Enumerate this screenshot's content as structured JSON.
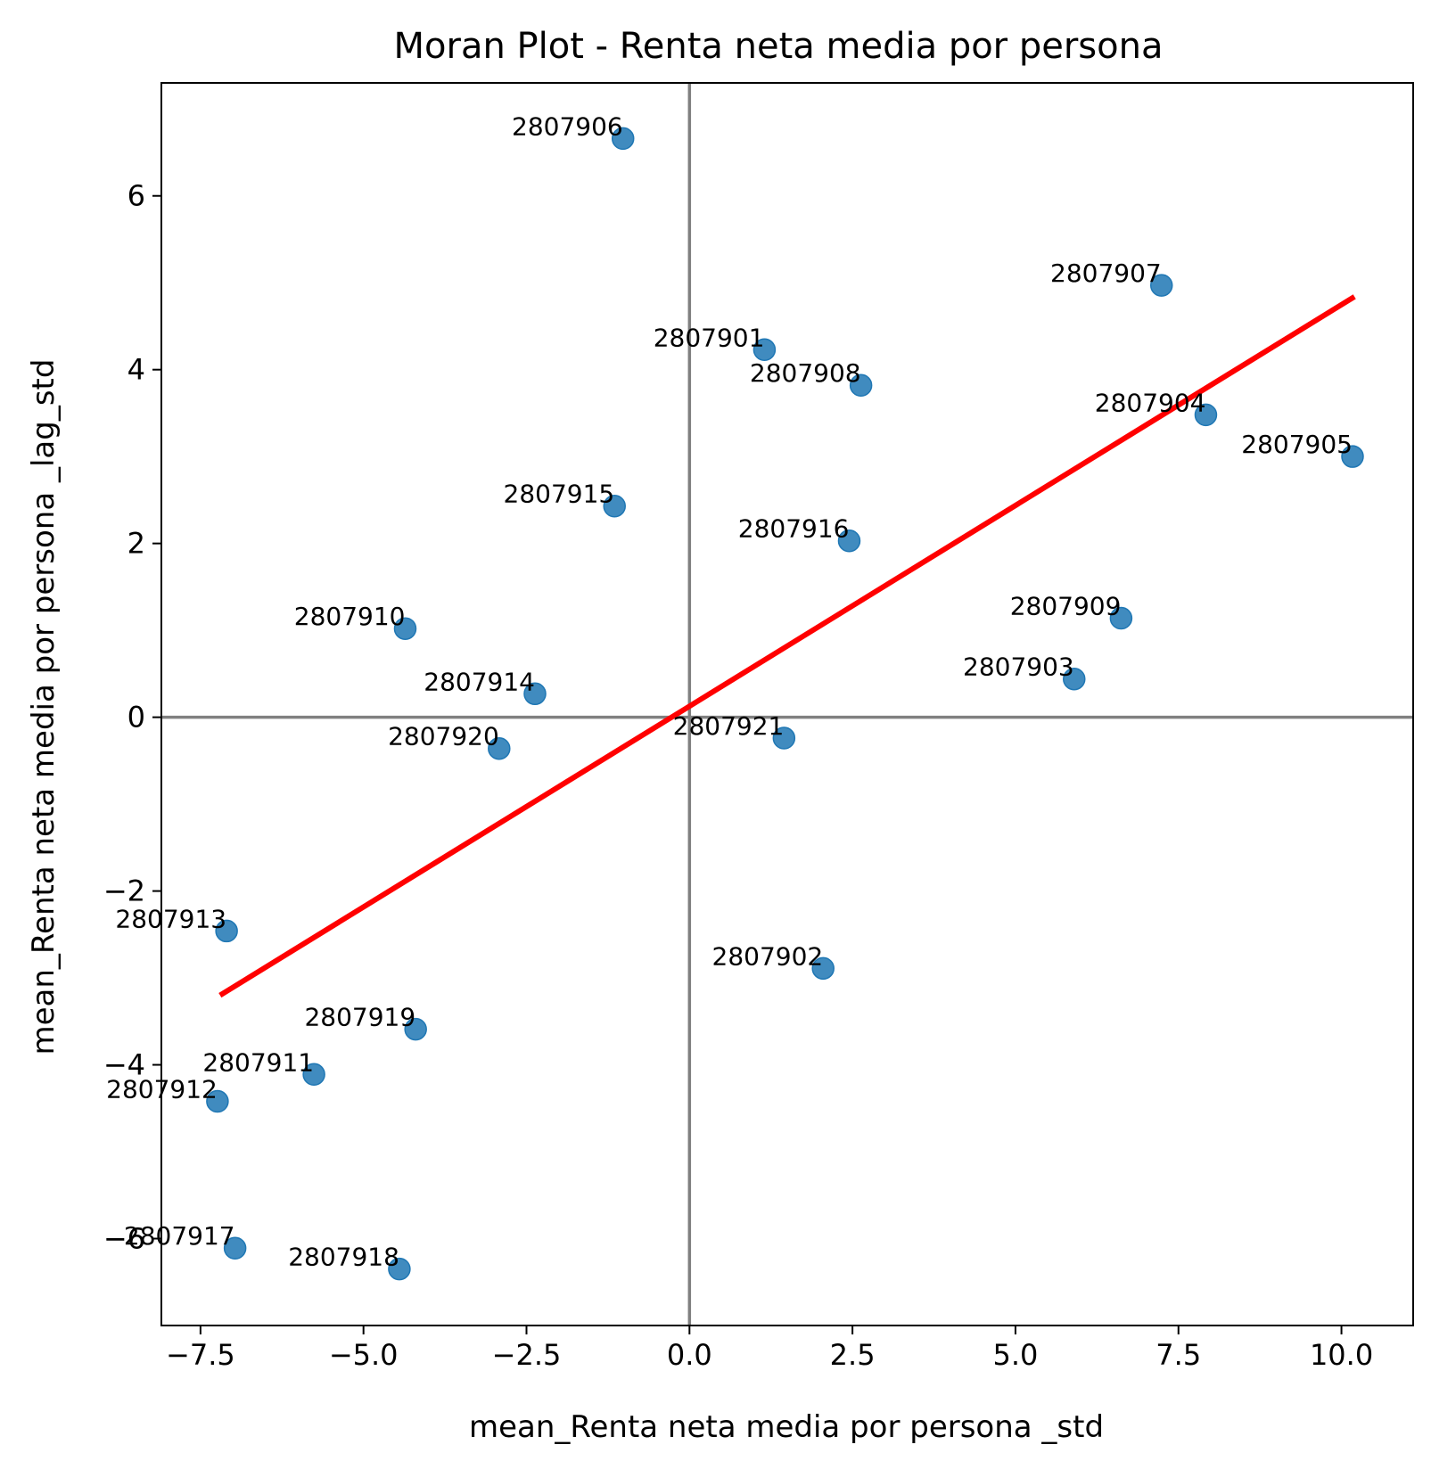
{
  "chart_data": {
    "type": "scatter",
    "title": "Moran Plot - Renta neta media por persona",
    "xlabel": "mean_Renta neta media por persona _std",
    "ylabel": "mean_Renta neta media por persona _lag_std",
    "xlim": [
      -8.1,
      11.1
    ],
    "ylim": [
      -7.0,
      7.3
    ],
    "xticks": [
      -7.5,
      -5.0,
      -2.5,
      0.0,
      2.5,
      5.0,
      7.5,
      10.0
    ],
    "xtick_labels": [
      "−7.5",
      "−5.0",
      "−2.5",
      "0.0",
      "2.5",
      "5.0",
      "7.5",
      "10.0"
    ],
    "yticks": [
      -6,
      -4,
      -2,
      0,
      2,
      4,
      6
    ],
    "ytick_labels": [
      "−6",
      "−4",
      "−2",
      "0",
      "2",
      "4",
      "6"
    ],
    "grid": false,
    "reference_lines": {
      "x": 0,
      "y": 0,
      "color": "#808080"
    },
    "point_color": "#1f77b4",
    "regression_line": {
      "x": [
        -7.2,
        10.2
      ],
      "y": [
        -3.2,
        4.84
      ],
      "color": "#ff0000"
    },
    "points": [
      {
        "label": "2807906",
        "x": -1.02,
        "y": 6.66
      },
      {
        "label": "2807907",
        "x": 7.24,
        "y": 4.97
      },
      {
        "label": "2807901",
        "x": 1.15,
        "y": 4.23
      },
      {
        "label": "2807908",
        "x": 2.63,
        "y": 3.82
      },
      {
        "label": "2807904",
        "x": 7.92,
        "y": 3.48
      },
      {
        "label": "2807905",
        "x": 10.17,
        "y": 3.0
      },
      {
        "label": "2807915",
        "x": -1.15,
        "y": 2.43
      },
      {
        "label": "2807916",
        "x": 2.45,
        "y": 2.03
      },
      {
        "label": "2807909",
        "x": 6.62,
        "y": 1.14
      },
      {
        "label": "2807910",
        "x": -4.36,
        "y": 1.02
      },
      {
        "label": "2807903",
        "x": 5.9,
        "y": 0.44
      },
      {
        "label": "2807914",
        "x": -2.37,
        "y": 0.27
      },
      {
        "label": "2807921",
        "x": 1.45,
        "y": -0.24
      },
      {
        "label": "2807920",
        "x": -2.92,
        "y": -0.36
      },
      {
        "label": "2807913",
        "x": -7.1,
        "y": -2.46
      },
      {
        "label": "2807902",
        "x": 2.05,
        "y": -2.89
      },
      {
        "label": "2807919",
        "x": -4.2,
        "y": -3.59
      },
      {
        "label": "2807911",
        "x": -5.76,
        "y": -4.11
      },
      {
        "label": "2807912",
        "x": -7.24,
        "y": -4.42
      },
      {
        "label": "2807917",
        "x": -6.97,
        "y": -6.11
      },
      {
        "label": "2807918",
        "x": -4.45,
        "y": -6.35
      }
    ]
  }
}
